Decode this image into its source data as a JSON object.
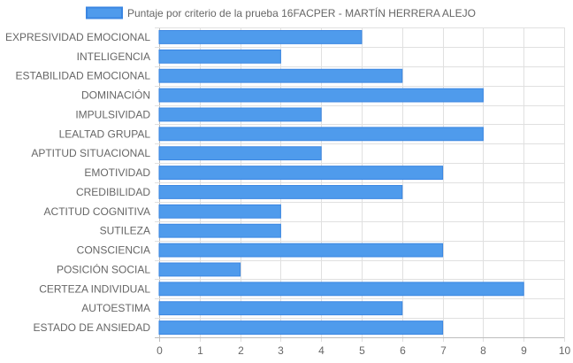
{
  "chart_data": {
    "type": "bar",
    "orientation": "horizontal",
    "legend": {
      "label": "Puntaje por criterio de la prueba 16FACPER - MARTÍN HERRERA ALEJO",
      "placement": "top"
    },
    "categories": [
      "EXPRESIVIDAD EMOCIONAL",
      "INTELIGENCIA",
      "ESTABILIDAD EMOCIONAL",
      "DOMINACIÓN",
      "IMPULSIVIDAD",
      "LEALTAD GRUPAL",
      "APTITUD SITUACIONAL",
      "EMOTIVIDAD",
      "CREDIBILIDAD",
      "ACTITUD COGNITIVA",
      "SUTILEZA",
      "CONSCIENCIA",
      "POSICIÓN SOCIAL",
      "CERTEZA INDIVIDUAL",
      "AUTOESTIMA",
      "ESTADO DE ANSIEDAD"
    ],
    "series": [
      {
        "name": "Puntaje por criterio de la prueba 16FACPER - MARTÍN HERRERA ALEJO",
        "values": [
          5,
          3,
          6,
          8,
          4,
          8,
          4,
          7,
          6,
          3,
          3,
          7,
          2,
          9,
          6,
          7
        ]
      }
    ],
    "xlim": [
      0,
      10
    ],
    "xticks": [
      "0",
      "1",
      "2",
      "3",
      "4",
      "5",
      "6",
      "7",
      "8",
      "9",
      "10"
    ],
    "grid": true,
    "colors": {
      "bar_fill": "#4f9bec",
      "bar_stroke": "#3a86e2",
      "grid": "#e0e0e0",
      "text": "#666666"
    }
  }
}
